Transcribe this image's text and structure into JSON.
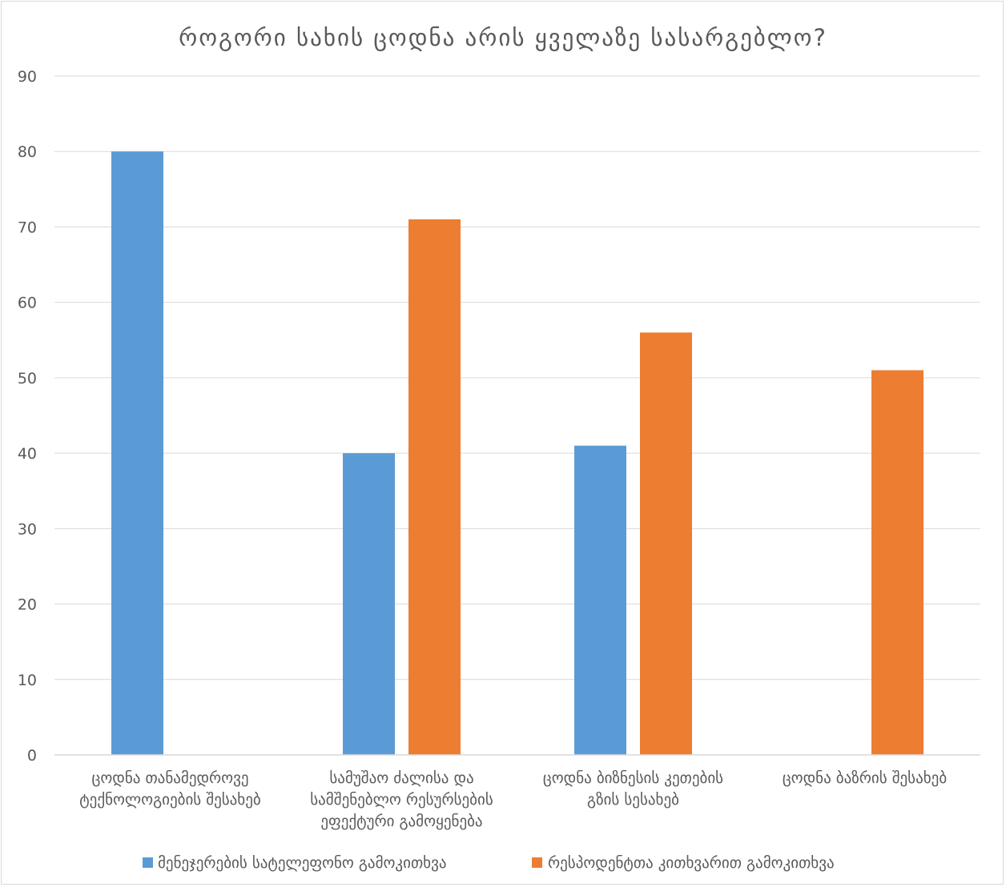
{
  "chart_data": {
    "type": "bar",
    "title": "როგორი სახის ცოდნა არის ყველაზე სასარგებლო?",
    "xlabel": "",
    "ylabel": "",
    "ylim": [
      0,
      90
    ],
    "yticks": [
      0,
      10,
      20,
      30,
      40,
      50,
      60,
      70,
      80,
      90
    ],
    "grid": true,
    "legend_position": "bottom",
    "categories": [
      [
        "ცოდნა თანამედროვე",
        "ტექნოლოგიების შესახებ"
      ],
      [
        "სამუშაო ძალისა და",
        "სამშენებლო რესურსების",
        "ეფექტური გამოყენება"
      ],
      [
        "ცოდნა ბიზნესის კეთების",
        "გზის სესახებ"
      ],
      [
        "ცოდნა ბაზრის შესახებ"
      ]
    ],
    "series": [
      {
        "name": "მენეჯერების სატელეფონო გამოკითხვა",
        "color": "#5b9bd5",
        "values": [
          80,
          40,
          41,
          null
        ]
      },
      {
        "name": "რესპოდენტთა კითხვარით გამოკითხვა",
        "color": "#ed7d31",
        "values": [
          null,
          71,
          56,
          51
        ]
      }
    ]
  }
}
